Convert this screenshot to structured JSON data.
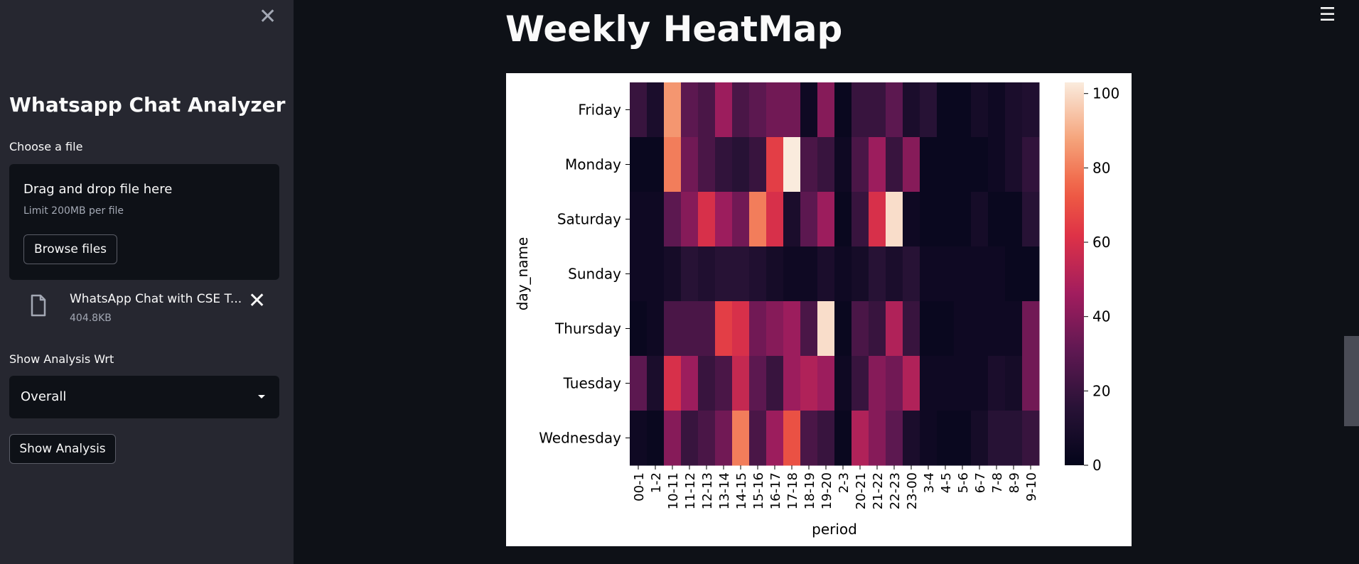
{
  "sidebar": {
    "app_title": "Whatsapp Chat Analyzer",
    "uploader": {
      "label": "Choose a file",
      "drag_text": "Drag and drop file here",
      "limit_text": "Limit 200MB per file",
      "browse_label": "Browse files"
    },
    "uploaded_file": {
      "name": "WhatsApp Chat with CSE T...",
      "size": "404.8KB"
    },
    "select": {
      "label": "Show Analysis Wrt",
      "value": "Overall"
    },
    "show_button": "Show Analysis",
    "close_icon": "close-icon"
  },
  "main": {
    "title": "Weekly HeatMap"
  },
  "colors": {
    "sidebar_bg": "#262730",
    "main_bg": "#0e1117",
    "text": "#fafafa"
  },
  "chart_data": {
    "type": "heatmap",
    "title": "",
    "xlabel": "period",
    "ylabel": "day_name",
    "rows": [
      "Friday",
      "Monday",
      "Saturday",
      "Sunday",
      "Thursday",
      "Tuesday",
      "Wednesday"
    ],
    "columns": [
      "00-1",
      "1-2",
      "10-11",
      "11-12",
      "12-13",
      "13-14",
      "14-15",
      "15-16",
      "16-17",
      "17-18",
      "18-19",
      "19-20",
      "2-3",
      "20-21",
      "21-22",
      "22-23",
      "23-00",
      "3-4",
      "4-5",
      "5-6",
      "6-7",
      "7-8",
      "8-9",
      "9-10"
    ],
    "values": [
      [
        20,
        10,
        85,
        30,
        25,
        45,
        25,
        30,
        35,
        35,
        5,
        40,
        3,
        20,
        20,
        30,
        10,
        15,
        3,
        3,
        8,
        5,
        10,
        12
      ],
      [
        3,
        3,
        80,
        35,
        25,
        18,
        15,
        20,
        65,
        103,
        25,
        20,
        5,
        25,
        45,
        20,
        40,
        3,
        3,
        3,
        3,
        5,
        10,
        18
      ],
      [
        5,
        5,
        30,
        40,
        60,
        45,
        35,
        80,
        60,
        10,
        30,
        45,
        3,
        20,
        60,
        100,
        5,
        3,
        3,
        3,
        8,
        3,
        3,
        15
      ],
      [
        5,
        5,
        8,
        15,
        12,
        15,
        15,
        12,
        8,
        5,
        5,
        10,
        5,
        8,
        15,
        10,
        15,
        5,
        5,
        5,
        5,
        5,
        3,
        3
      ],
      [
        3,
        5,
        25,
        25,
        25,
        65,
        60,
        35,
        40,
        45,
        25,
        100,
        3,
        25,
        20,
        50,
        20,
        3,
        3,
        5,
        5,
        5,
        5,
        35
      ],
      [
        30,
        10,
        60,
        45,
        20,
        25,
        55,
        30,
        20,
        45,
        50,
        45,
        5,
        20,
        40,
        35,
        50,
        5,
        5,
        5,
        5,
        10,
        8,
        35
      ],
      [
        5,
        3,
        40,
        20,
        25,
        35,
        80,
        25,
        45,
        70,
        25,
        20,
        3,
        50,
        40,
        30,
        10,
        5,
        3,
        3,
        8,
        15,
        15,
        20
      ]
    ],
    "colorbar": {
      "min": 0,
      "max": 103,
      "ticks": [
        0,
        20,
        40,
        60,
        80,
        100
      ]
    },
    "colormap": "rocket"
  }
}
